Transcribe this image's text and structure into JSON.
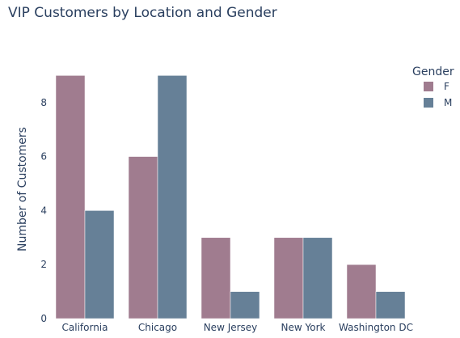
{
  "chart_data": {
    "type": "bar",
    "title": "VIP Customers by Location and Gender",
    "xlabel": "",
    "ylabel": "Number of Customers",
    "categories": [
      "California",
      "Chicago",
      "New Jersey",
      "New York",
      "Washington DC"
    ],
    "series": [
      {
        "name": "F",
        "values": [
          9,
          6,
          3,
          3,
          2
        ],
        "color": "#a07c8f"
      },
      {
        "name": "M",
        "values": [
          4,
          9,
          1,
          3,
          1
        ],
        "color": "#668097"
      }
    ],
    "ylim": [
      0,
      9.4
    ],
    "yticks": [
      0,
      2,
      4,
      6,
      8
    ],
    "grid": false,
    "legend": {
      "title": "Gender",
      "position": "top-right"
    }
  }
}
